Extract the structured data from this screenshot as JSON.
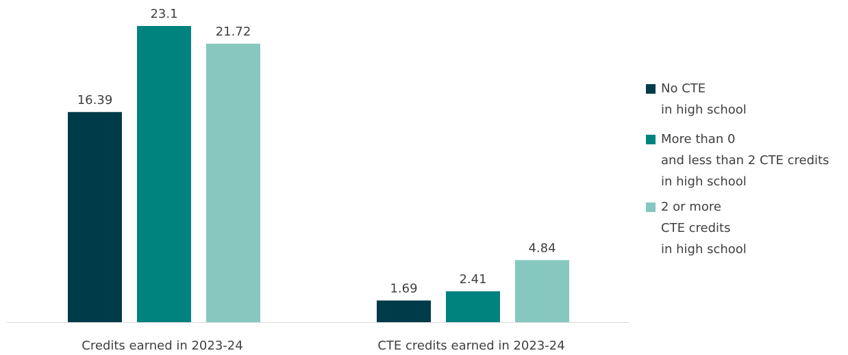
{
  "chart_data": {
    "type": "bar",
    "categories": [
      "Credits earned in 2023-24",
      "CTE credits earned in 2023-24"
    ],
    "series": [
      {
        "name": "No CTE in high school",
        "legend_lines": [
          "No CTE",
          "in high school"
        ],
        "color": "#003b49",
        "values": [
          16.39,
          1.69
        ],
        "value_labels": [
          "16.39",
          "1.69"
        ]
      },
      {
        "name": "More than 0 and less than 2 CTE credits in high school",
        "legend_lines": [
          "More than 0",
          "and less than 2 CTE credits",
          "in high school"
        ],
        "color": "#00827f",
        "values": [
          23.1,
          2.41
        ],
        "value_labels": [
          "23.1",
          "2.41"
        ]
      },
      {
        "name": "2 or more CTE credits in high school",
        "legend_lines": [
          "2 or more",
          "CTE credits",
          "in high school"
        ],
        "color": "#86c8bf",
        "values": [
          21.72,
          4.84
        ],
        "value_labels": [
          "21.72",
          "4.84"
        ]
      }
    ],
    "ylim": [
      0,
      25
    ],
    "axis_color": "#d9d9d9",
    "grid": false,
    "legend_position": "right",
    "title": "",
    "xlabel": "",
    "ylabel": ""
  }
}
